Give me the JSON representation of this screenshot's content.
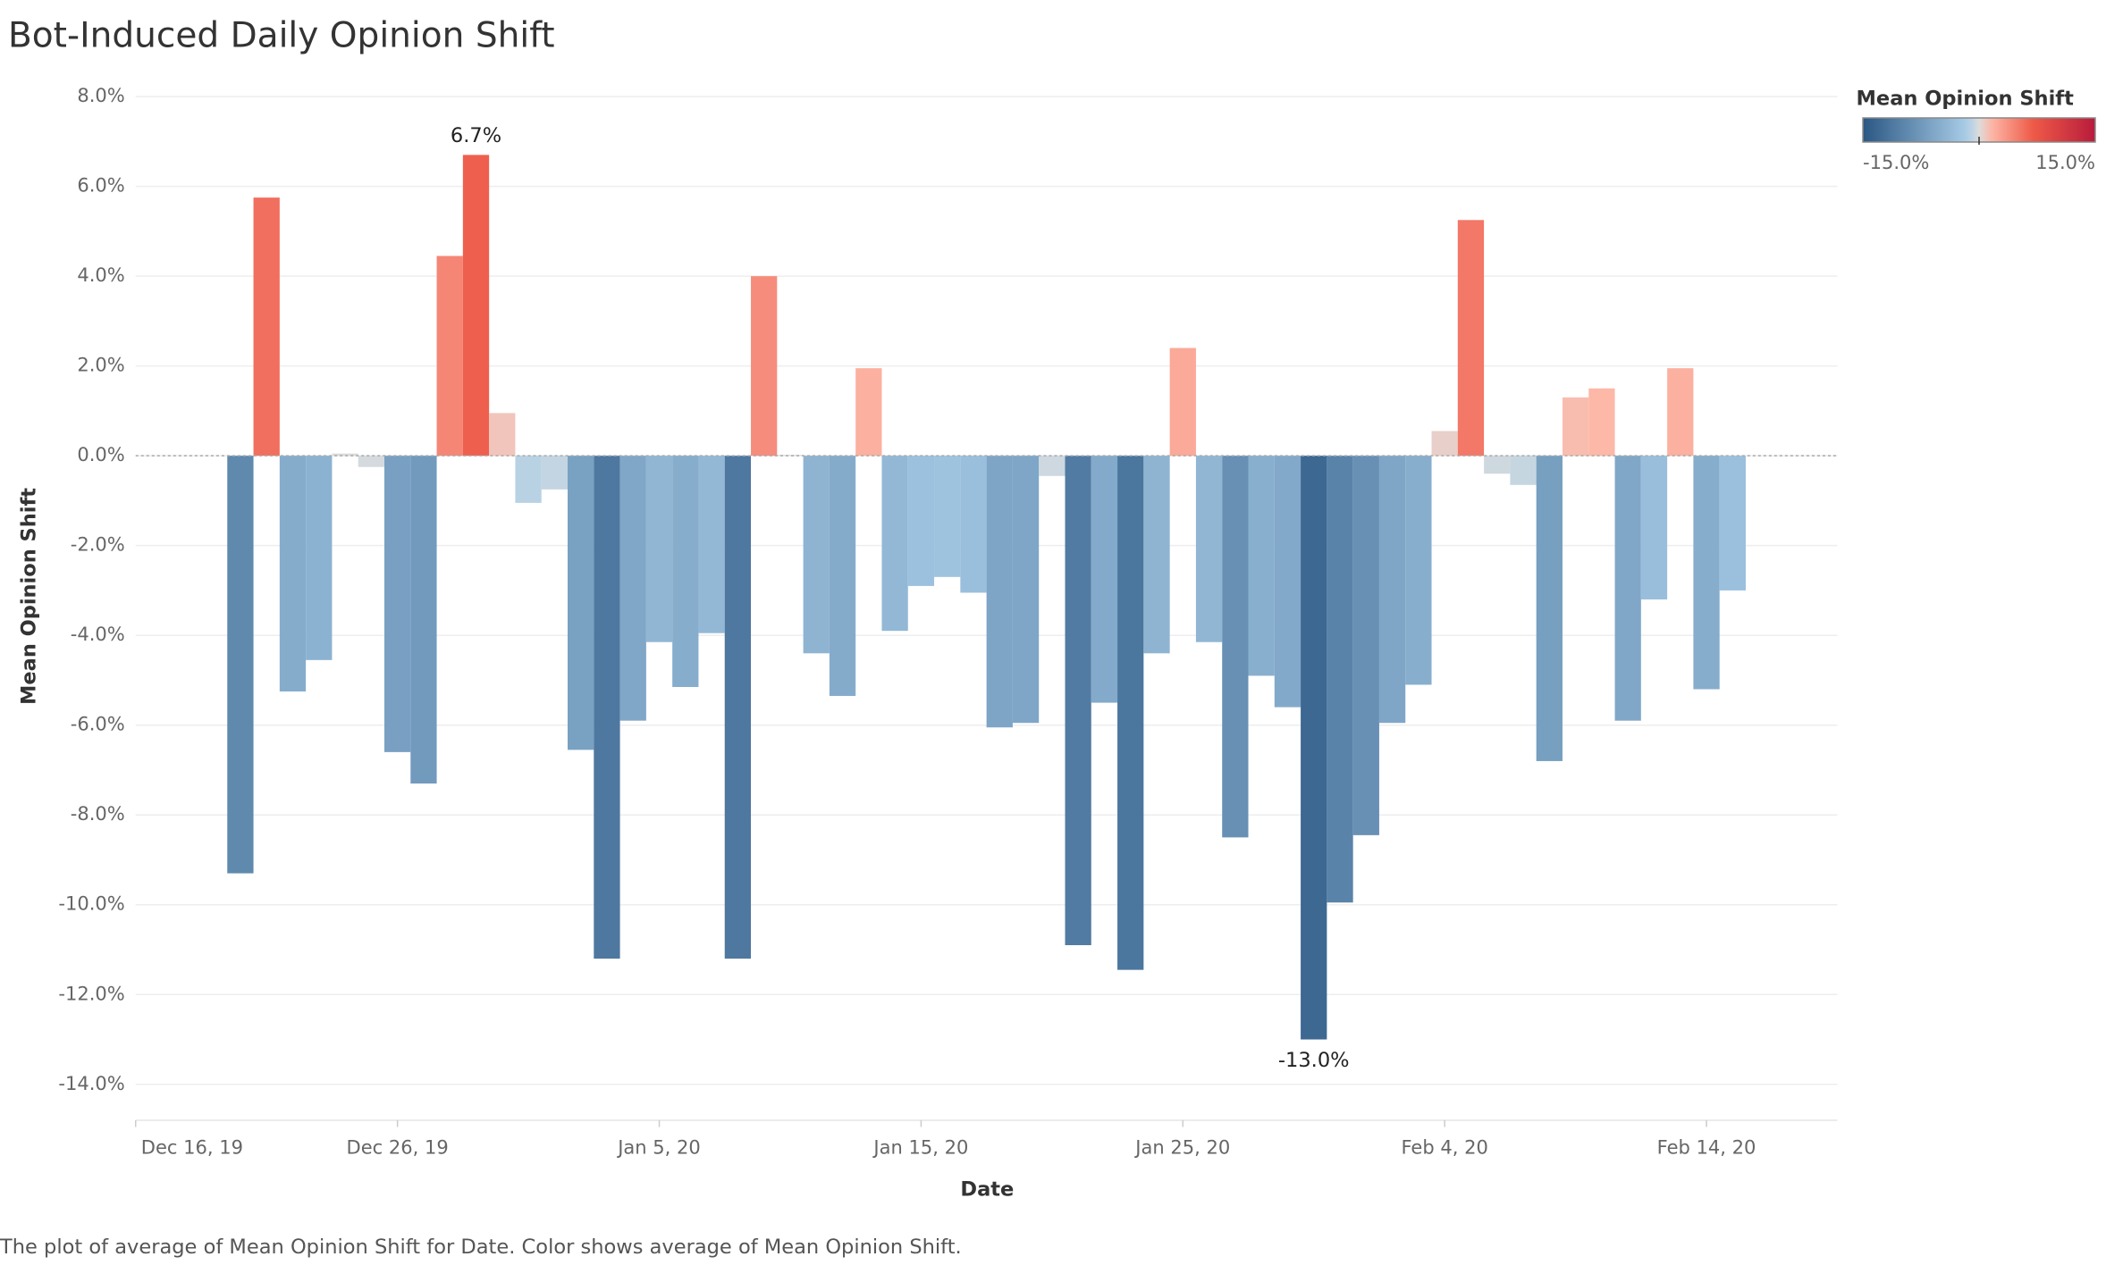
{
  "chart_data": {
    "type": "bar",
    "title": "Bot-Induced Daily Opinion Shift",
    "x_label": "Date",
    "y_label": "Mean Opinion Shift",
    "caption": "The plot of average of Mean Opinion Shift for Date.  Color shows average of Mean Opinion Shift.",
    "x": [
      "2019-12-20",
      "2019-12-21",
      "2019-12-22",
      "2019-12-23",
      "2019-12-24",
      "2019-12-25",
      "2019-12-26",
      "2019-12-27",
      "2019-12-28",
      "2019-12-29",
      "2019-12-30",
      "2019-12-31",
      "2020-01-01",
      "2020-01-02",
      "2020-01-03",
      "2020-01-04",
      "2020-01-05",
      "2020-01-06",
      "2020-01-07",
      "2020-01-08",
      "2020-01-09",
      "2020-01-10",
      "2020-01-11",
      "2020-01-12",
      "2020-01-13",
      "2020-01-14",
      "2020-01-15",
      "2020-01-16",
      "2020-01-17",
      "2020-01-18",
      "2020-01-19",
      "2020-01-20",
      "2020-01-21",
      "2020-01-22",
      "2020-01-23",
      "2020-01-24",
      "2020-01-25",
      "2020-01-26",
      "2020-01-27",
      "2020-01-28",
      "2020-01-29",
      "2020-01-30",
      "2020-01-31",
      "2020-02-01",
      "2020-02-02",
      "2020-02-03",
      "2020-02-04",
      "2020-02-05",
      "2020-02-06",
      "2020-02-07",
      "2020-02-08",
      "2020-02-09",
      "2020-02-10",
      "2020-02-11",
      "2020-02-12",
      "2020-02-13",
      "2020-02-14",
      "2020-02-15"
    ],
    "values": [
      -9.3,
      5.75,
      -5.25,
      -4.55,
      0.05,
      -0.25,
      -6.6,
      -7.3,
      4.45,
      6.7,
      0.95,
      -1.05,
      -0.75,
      -6.55,
      -11.2,
      -5.9,
      -4.15,
      -5.15,
      -3.95,
      -11.2,
      4.0,
      0.02,
      -4.4,
      -5.35,
      1.95,
      -3.9,
      -2.9,
      -2.7,
      -3.05,
      -6.05,
      -5.95,
      -0.45,
      -10.9,
      -5.5,
      -11.45,
      -4.4,
      2.4,
      -4.15,
      -8.5,
      -4.9,
      -5.6,
      -13.0,
      -9.95,
      -8.45,
      -5.95,
      -5.1,
      0.55,
      5.25,
      -0.4,
      -0.65,
      -6.8,
      1.3,
      1.5,
      -5.9,
      -3.2,
      1.95,
      -5.2,
      -3.0
    ],
    "value_labels": [
      null,
      null,
      null,
      null,
      null,
      null,
      null,
      null,
      null,
      "6.7%",
      null,
      null,
      null,
      null,
      null,
      null,
      null,
      null,
      null,
      null,
      null,
      null,
      null,
      null,
      null,
      null,
      null,
      null,
      null,
      null,
      null,
      null,
      null,
      null,
      null,
      null,
      null,
      null,
      null,
      null,
      null,
      "-13.0%",
      null,
      null,
      null,
      null,
      null,
      null,
      null,
      null,
      null,
      null,
      null,
      null,
      null,
      null,
      null,
      null
    ],
    "xlim": [
      "2019-12-16",
      "2020-02-19"
    ],
    "xticks": [
      {
        "value": "2019-12-16",
        "label": "Dec 16, 19"
      },
      {
        "value": "2019-12-26",
        "label": "Dec 26, 19"
      },
      {
        "value": "2020-01-05",
        "label": "Jan 5, 20"
      },
      {
        "value": "2020-01-15",
        "label": "Jan 15, 20"
      },
      {
        "value": "2020-01-25",
        "label": "Jan 25, 20"
      },
      {
        "value": "2020-02-04",
        "label": "Feb 4, 20"
      },
      {
        "value": "2020-02-14",
        "label": "Feb 14, 20"
      }
    ],
    "ylim": [
      -14.8,
      8.3
    ],
    "yticks": [
      {
        "value": 8,
        "label": "8.0%"
      },
      {
        "value": 6,
        "label": "6.0%"
      },
      {
        "value": 4,
        "label": "4.0%"
      },
      {
        "value": 2,
        "label": "2.0%"
      },
      {
        "value": 0,
        "label": "0.0%"
      },
      {
        "value": -2,
        "label": "-2.0%"
      },
      {
        "value": -4,
        "label": "-4.0%"
      },
      {
        "value": -6,
        "label": "-6.0%"
      },
      {
        "value": -8,
        "label": "-8.0%"
      },
      {
        "value": -10,
        "label": "-10.0%"
      },
      {
        "value": -12,
        "label": "-12.0%"
      },
      {
        "value": -14,
        "label": "-14.0%"
      }
    ],
    "grid": true,
    "legend": {
      "title": "Mean Opinion Shift",
      "position": "top-right",
      "range": [
        {
          "value": -15,
          "label": "-15.0%"
        },
        {
          "value": 15,
          "label": "15.0%"
        }
      ]
    },
    "color_stops": [
      [
        -15,
        "#2a5783"
      ],
      [
        -1.5,
        "#a9cde8"
      ],
      [
        0,
        "#dcdcdc"
      ],
      [
        1.5,
        "#fdb8a8"
      ],
      [
        7,
        "#ee5a48"
      ],
      [
        15,
        "#b81b3b"
      ]
    ]
  }
}
